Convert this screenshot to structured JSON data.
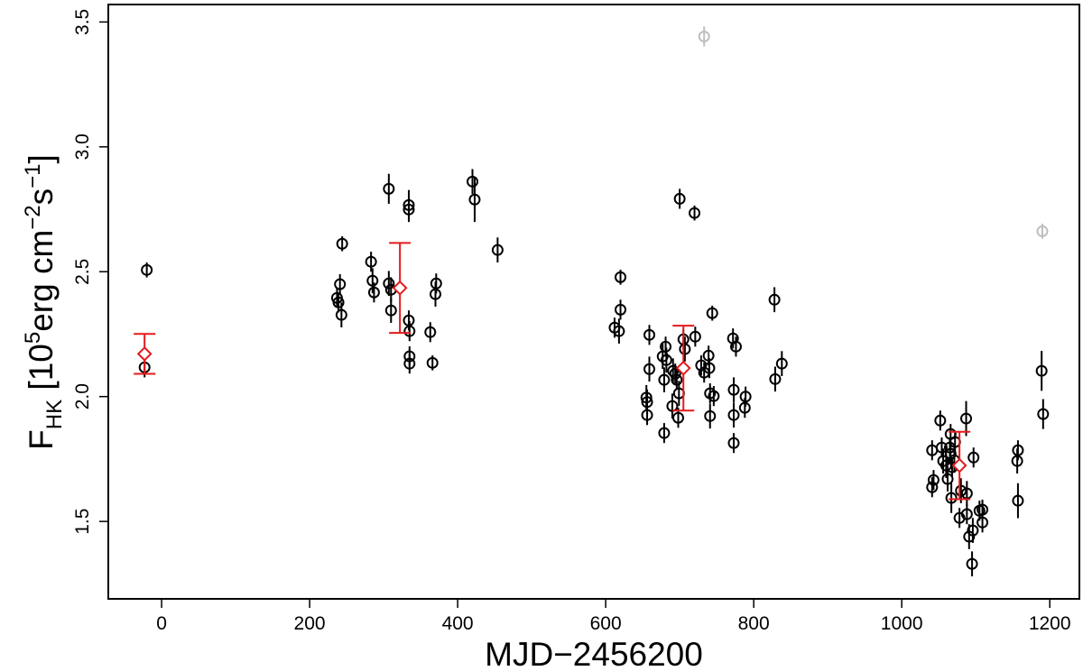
{
  "chart_data": {
    "type": "scatter",
    "xlabel": "MJD−2456200",
    "ylabel_parts": [
      "F",
      "HK",
      " [10",
      "5",
      "erg cm",
      "−2",
      "s",
      "−1",
      "]"
    ],
    "xlim": [
      -72,
      1240
    ],
    "ylim": [
      1.19,
      3.57
    ],
    "xticks": [
      0,
      200,
      400,
      600,
      800,
      1000,
      1200
    ],
    "yticks": [
      1.5,
      {
        "value": 2.0,
        "label": "2.0"
      },
      2.5,
      {
        "value": 3.0,
        "label": "3.0"
      },
      3.5
    ],
    "series": [
      {
        "color": "#000000",
        "marker": "circle",
        "x": [
          -20,
          -23,
          237,
          239,
          241,
          244,
          243,
          283,
          285,
          287,
          307,
          307,
          310,
          310,
          334,
          334,
          334,
          335,
          335,
          335,
          363,
          366,
          371,
          370,
          420,
          423,
          454,
          612,
          618,
          620,
          620,
          659,
          659,
          655,
          656,
          656,
          681,
          677,
          682,
          679,
          679,
          691,
          694,
          696,
          699,
          690,
          698,
          700,
          705,
          707,
          720,
          721,
          729,
          733,
          739,
          740,
          741,
          741,
          744,
          746,
          772,
          776,
          773,
          773,
          773,
          789,
          788,
          828,
          829,
          838,
          1041,
          1043,
          1041,
          1052,
          1054,
          1056,
          1060,
          1062,
          1065,
          1066,
          1066,
          1067,
          1068,
          1072,
          1071,
          1078,
          1080,
          1087,
          1088,
          1088,
          1091,
          1095,
          1096,
          1097,
          1105,
          1109,
          1109,
          1157,
          1156,
          1157,
          1189,
          1191
        ],
        "values": [
          2.507,
          2.117,
          2.395,
          2.377,
          2.45,
          2.612,
          2.327,
          2.54,
          2.464,
          2.417,
          2.832,
          2.453,
          2.428,
          2.345,
          2.749,
          2.767,
          2.305,
          2.262,
          2.161,
          2.132,
          2.258,
          2.135,
          2.453,
          2.41,
          2.861,
          2.789,
          2.587,
          2.276,
          2.262,
          2.478,
          2.348,
          2.247,
          2.11,
          1.996,
          1.978,
          1.926,
          2.2,
          2.161,
          2.146,
          2.067,
          1.854,
          2.103,
          2.092,
          2.067,
          2.013,
          1.962,
          1.915,
          2.792,
          2.229,
          2.19,
          2.735,
          2.24,
          2.125,
          2.096,
          2.164,
          2.114,
          2.013,
          1.922,
          2.334,
          2.002,
          2.233,
          2.2,
          2.027,
          1.926,
          1.814,
          2.0,
          1.955,
          2.388,
          2.07,
          2.132,
          1.785,
          1.666,
          1.637,
          1.904,
          1.796,
          1.742,
          1.724,
          1.67,
          1.796,
          1.771,
          1.85,
          1.594,
          1.717,
          1.818,
          1.745,
          1.514,
          1.623,
          1.912,
          1.612,
          1.529,
          1.439,
          1.33,
          1.464,
          1.756,
          1.543,
          1.547,
          1.496,
          1.785,
          1.742,
          1.583,
          2.103,
          1.93
        ],
        "errors": [
          0.03,
          0.04,
          0.04,
          0.04,
          0.04,
          0.03,
          0.05,
          0.04,
          0.05,
          0.04,
          0.06,
          0.05,
          0.05,
          0.05,
          0.05,
          0.06,
          0.04,
          0.04,
          0.04,
          0.04,
          0.04,
          0.03,
          0.04,
          0.05,
          0.05,
          0.09,
          0.05,
          0.04,
          0.05,
          0.03,
          0.04,
          0.04,
          0.05,
          0.05,
          0.05,
          0.04,
          0.04,
          0.05,
          0.05,
          0.05,
          0.04,
          0.05,
          0.04,
          0.04,
          0.05,
          0.05,
          0.04,
          0.04,
          0.04,
          0.05,
          0.03,
          0.04,
          0.04,
          0.04,
          0.04,
          0.04,
          0.04,
          0.05,
          0.03,
          0.04,
          0.04,
          0.04,
          0.05,
          0.05,
          0.04,
          0.04,
          0.04,
          0.05,
          0.05,
          0.05,
          0.04,
          0.04,
          0.04,
          0.04,
          0.04,
          0.05,
          0.05,
          0.05,
          0.04,
          0.04,
          0.04,
          0.06,
          0.04,
          0.04,
          0.05,
          0.04,
          0.05,
          0.07,
          0.05,
          0.04,
          0.05,
          0.05,
          0.05,
          0.04,
          0.04,
          0.04,
          0.04,
          0.04,
          0.05,
          0.07,
          0.08,
          0.06
        ]
      },
      {
        "color": "#bebebe",
        "marker": "circle",
        "x": [
          733,
          1190
        ],
        "values": [
          3.442,
          2.662
        ],
        "errors": [
          0.04,
          0.03
        ]
      },
      {
        "color": "#e41a1c",
        "marker": "diamond",
        "caps": true,
        "x": [
          -23,
          322,
          705,
          1078
        ],
        "values": [
          2.171,
          2.435,
          2.114,
          1.724
        ],
        "errors": [
          0.08,
          0.18,
          0.17,
          0.135
        ]
      }
    ]
  }
}
